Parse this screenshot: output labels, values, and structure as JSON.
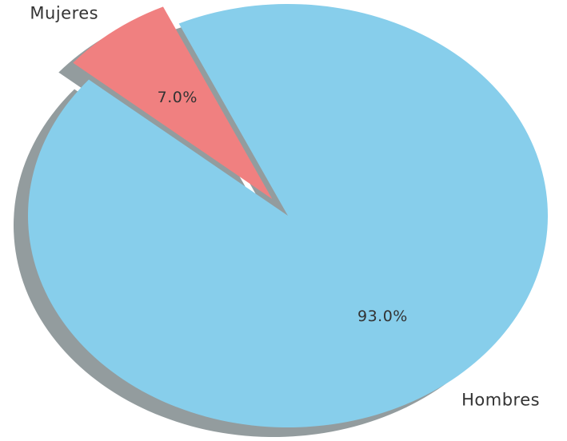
{
  "chart_data": {
    "type": "pie",
    "categories": [
      "Hombres",
      "Mujeres"
    ],
    "values": [
      93.0,
      7.0
    ],
    "value_labels": [
      "93.0%",
      "7.0%"
    ],
    "colors": [
      "#87ceeb",
      "#f08080"
    ],
    "shadow": true
  }
}
